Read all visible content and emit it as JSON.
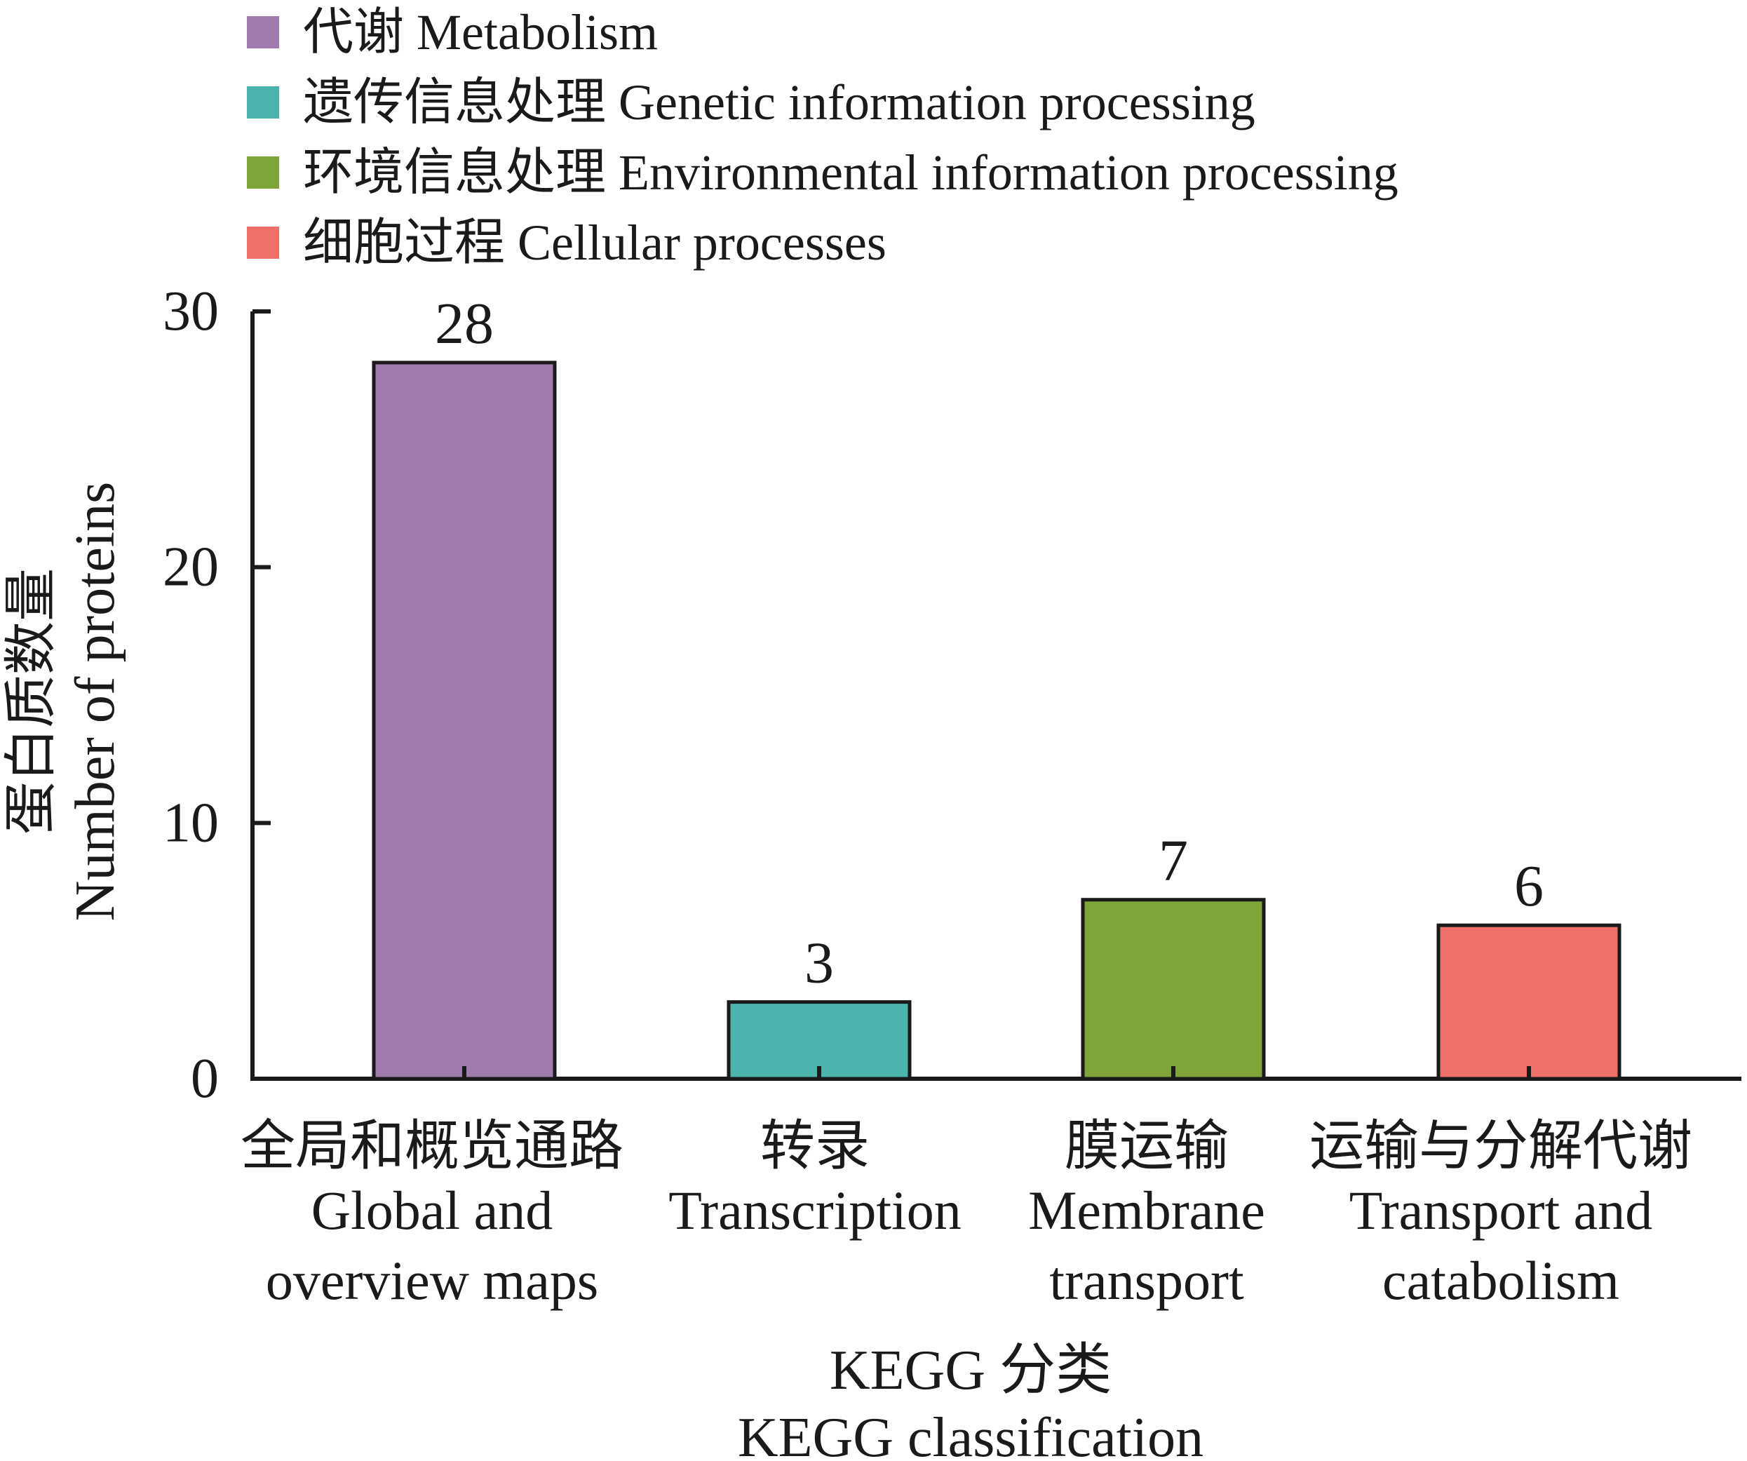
{
  "legend": [
    {
      "label": "代谢 Metabolism",
      "color": "#a07bae"
    },
    {
      "label": "遗传信息处理 Genetic information processing",
      "color": "#4bb4ad"
    },
    {
      "label": "环境信息处理 Environmental information processing",
      "color": "#7ea43a"
    },
    {
      "label": "细胞过程 Cellular processes",
      "color": "#ef7069"
    }
  ],
  "chart_data": {
    "type": "bar",
    "categories": [
      {
        "zh": "全局和概览通路",
        "en": [
          "Global and",
          "overview maps"
        ]
      },
      {
        "zh": "转录",
        "en": [
          "Transcription"
        ]
      },
      {
        "zh": "膜运输",
        "en": [
          "Membrane",
          "transport"
        ]
      },
      {
        "zh": "运输与分解代谢",
        "en": [
          "Transport and",
          "catabolism"
        ]
      }
    ],
    "values": [
      28,
      3,
      7,
      6
    ],
    "data_labels": [
      "28",
      "3",
      "7",
      "6"
    ],
    "colors": [
      "#a07bae",
      "#4bb4ad",
      "#7ea43a",
      "#ef7069"
    ],
    "xlabel": {
      "zh": "KEGG 分类",
      "en": "KEGG classification"
    },
    "ylabel": {
      "zh": "蛋白质数量",
      "en": "Number of proteins"
    },
    "ylim": [
      0,
      30
    ],
    "yticks": [
      0,
      10,
      20,
      30
    ],
    "grid": false,
    "legend_position": "top"
  }
}
